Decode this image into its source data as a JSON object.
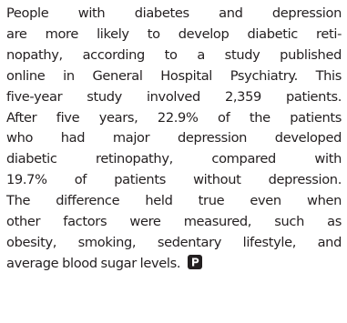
{
  "article": {
    "lines": [
      "People with diabetes and depression",
      "are more likely to develop diabetic reti-",
      "nopathy, according to a study published",
      "online in General Hospital Psychiatry. This",
      "five-year study involved 2,359 patients.",
      "After five years, 22.9% of the patients",
      "who had major depression developed",
      "diabetic retinopathy, compared with",
      "19.7% of patients without depression.",
      "The difference held true even when",
      "other factors were measured, such as",
      "obesity, smoking, sedentary lifestyle, and",
      "average blood sugar levels."
    ],
    "end_mark_icon": "p-end-mark-icon"
  }
}
